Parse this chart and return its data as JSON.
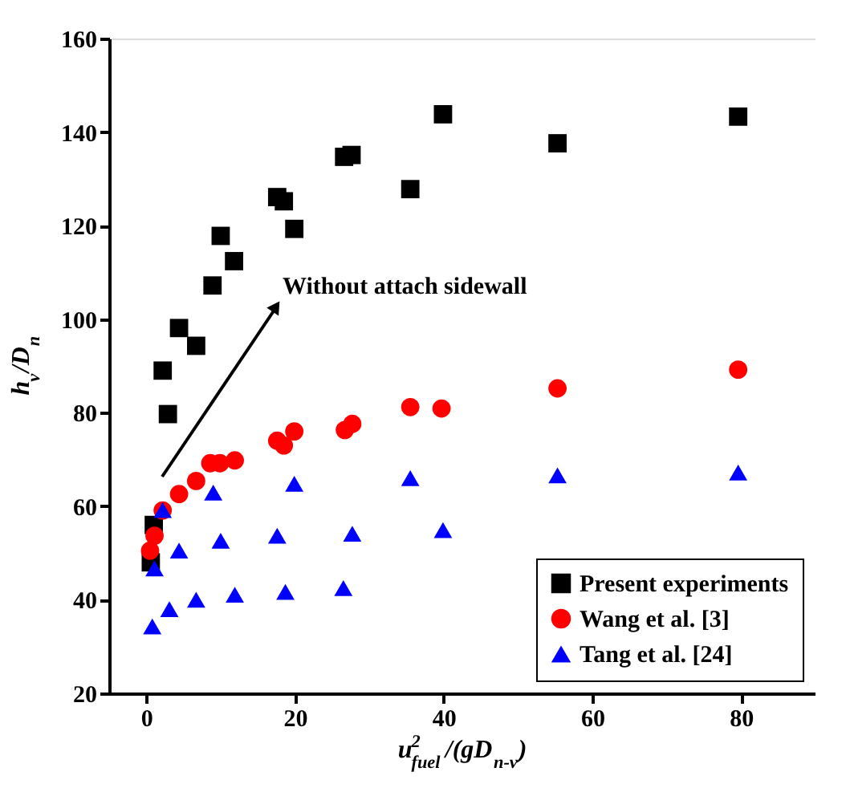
{
  "chart_data": {
    "type": "scatter",
    "xlabel": "u$_{fuel}$$^{2}$/(gD$_{n-v}$)",
    "ylabel": "h$_{v}$/D$_{n}$",
    "xlim": [
      -5,
      90
    ],
    "ylim": [
      20,
      160
    ],
    "xticks": [
      0,
      20,
      40,
      60,
      80
    ],
    "yticks": [
      20,
      40,
      60,
      80,
      100,
      120,
      140,
      160
    ],
    "grid": false,
    "legend": "bottom right",
    "annotations": [
      "Without attach sidewall"
    ],
    "series": [
      {
        "name": "Present experiments",
        "color": "#000000",
        "marker": "square",
        "x": [
          39.9,
          79.6,
          55.3,
          26.6,
          27.6,
          35.5,
          17.6,
          18.5,
          19.9,
          10.0,
          11.8,
          8.9,
          4.4,
          6.7,
          2.2,
          2.9,
          1.0,
          0.6
        ],
        "values": [
          143.8,
          143.3,
          137.6,
          134.7,
          135.1,
          127.8,
          126.1,
          125.2,
          119.3,
          117.8,
          112.4,
          107.2,
          98.1,
          94.3,
          89.0,
          79.7,
          56.0,
          48.0
        ]
      },
      {
        "name": "Wang et al. [3]",
        "color": "#ff0000",
        "marker": "circle",
        "x": [
          79.6,
          55.3,
          35.5,
          39.7,
          26.7,
          27.7,
          19.9,
          17.6,
          18.5,
          11.9,
          9.9,
          8.6,
          6.7,
          4.4,
          2.2,
          1.1,
          0.5
        ],
        "values": [
          89.2,
          85.2,
          81.2,
          80.9,
          76.3,
          77.6,
          76.0,
          74.0,
          73.0,
          69.8,
          69.2,
          69.2,
          65.4,
          62.6,
          59.1,
          53.7,
          50.5
        ]
      },
      {
        "name": "Tang et al. [24]",
        "color": "#0000ff",
        "marker": "triangle",
        "x": [
          79.6,
          55.3,
          35.5,
          19.9,
          9.0,
          2.2,
          39.9,
          27.7,
          17.6,
          10.0,
          4.4,
          1.1,
          26.5,
          18.7,
          11.9,
          6.7,
          3.1,
          0.8
        ],
        "values": [
          67.2,
          66.6,
          66.0,
          64.8,
          62.9,
          59.2,
          54.9,
          54.1,
          53.7,
          52.6,
          50.5,
          46.7,
          42.5,
          41.7,
          41.1,
          40.0,
          38.0,
          34.3
        ]
      }
    ]
  }
}
